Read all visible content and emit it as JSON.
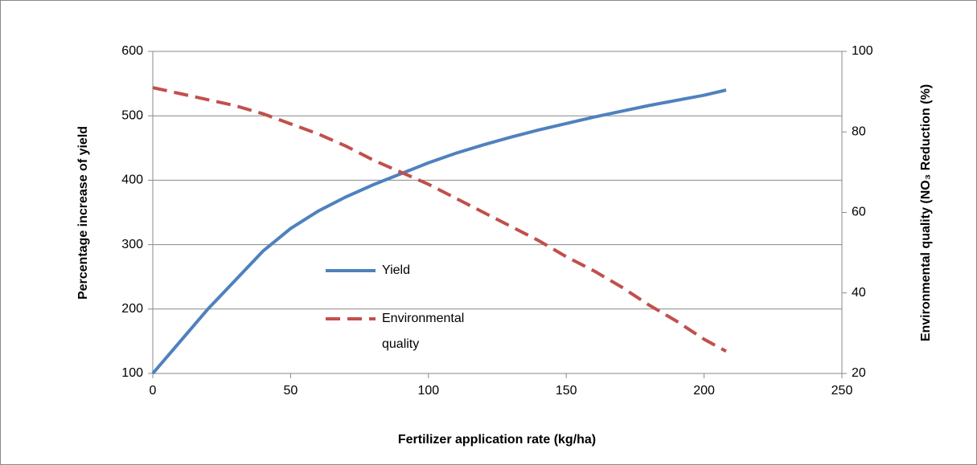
{
  "chart_data": {
    "type": "line",
    "xlabel": "Fertilizer application  rate (kg/ha)",
    "ylabel": "Percentage increase  of yield",
    "y2label": "Environmental quality  (NO₃ Reduction  (%)",
    "x": [
      0,
      10,
      20,
      30,
      40,
      50,
      60,
      70,
      80,
      90,
      100,
      110,
      120,
      130,
      140,
      150,
      160,
      170,
      180,
      190,
      200,
      208
    ],
    "series": [
      {
        "name": "Yield",
        "color": "#4f81bd",
        "dash": false,
        "values": [
          100,
          150,
          200,
          245,
          290,
          325,
          352,
          374,
          393,
          410,
          427,
          442,
          455,
          467,
          478,
          488,
          498,
          507,
          516,
          524,
          532,
          540
        ]
      },
      {
        "name": "Environmental quality",
        "color": "#c0504d",
        "dash": true,
        "axis": "y2",
        "values": [
          91,
          89.5,
          88,
          86.5,
          84.5,
          82,
          79.5,
          76.5,
          73,
          70,
          67,
          63.5,
          60,
          56.5,
          53,
          49,
          45.5,
          41.5,
          37,
          33,
          28.5,
          25.5
        ]
      }
    ],
    "xlim": [
      0,
      250
    ],
    "xticks": [
      0,
      50,
      100,
      150,
      200,
      250
    ],
    "ylim": [
      100,
      600
    ],
    "yticks": [
      100,
      200,
      300,
      400,
      500,
      600
    ],
    "y2lim": [
      20,
      100
    ],
    "y2ticks": [
      20,
      40,
      60,
      80,
      100
    ],
    "grid": true
  }
}
